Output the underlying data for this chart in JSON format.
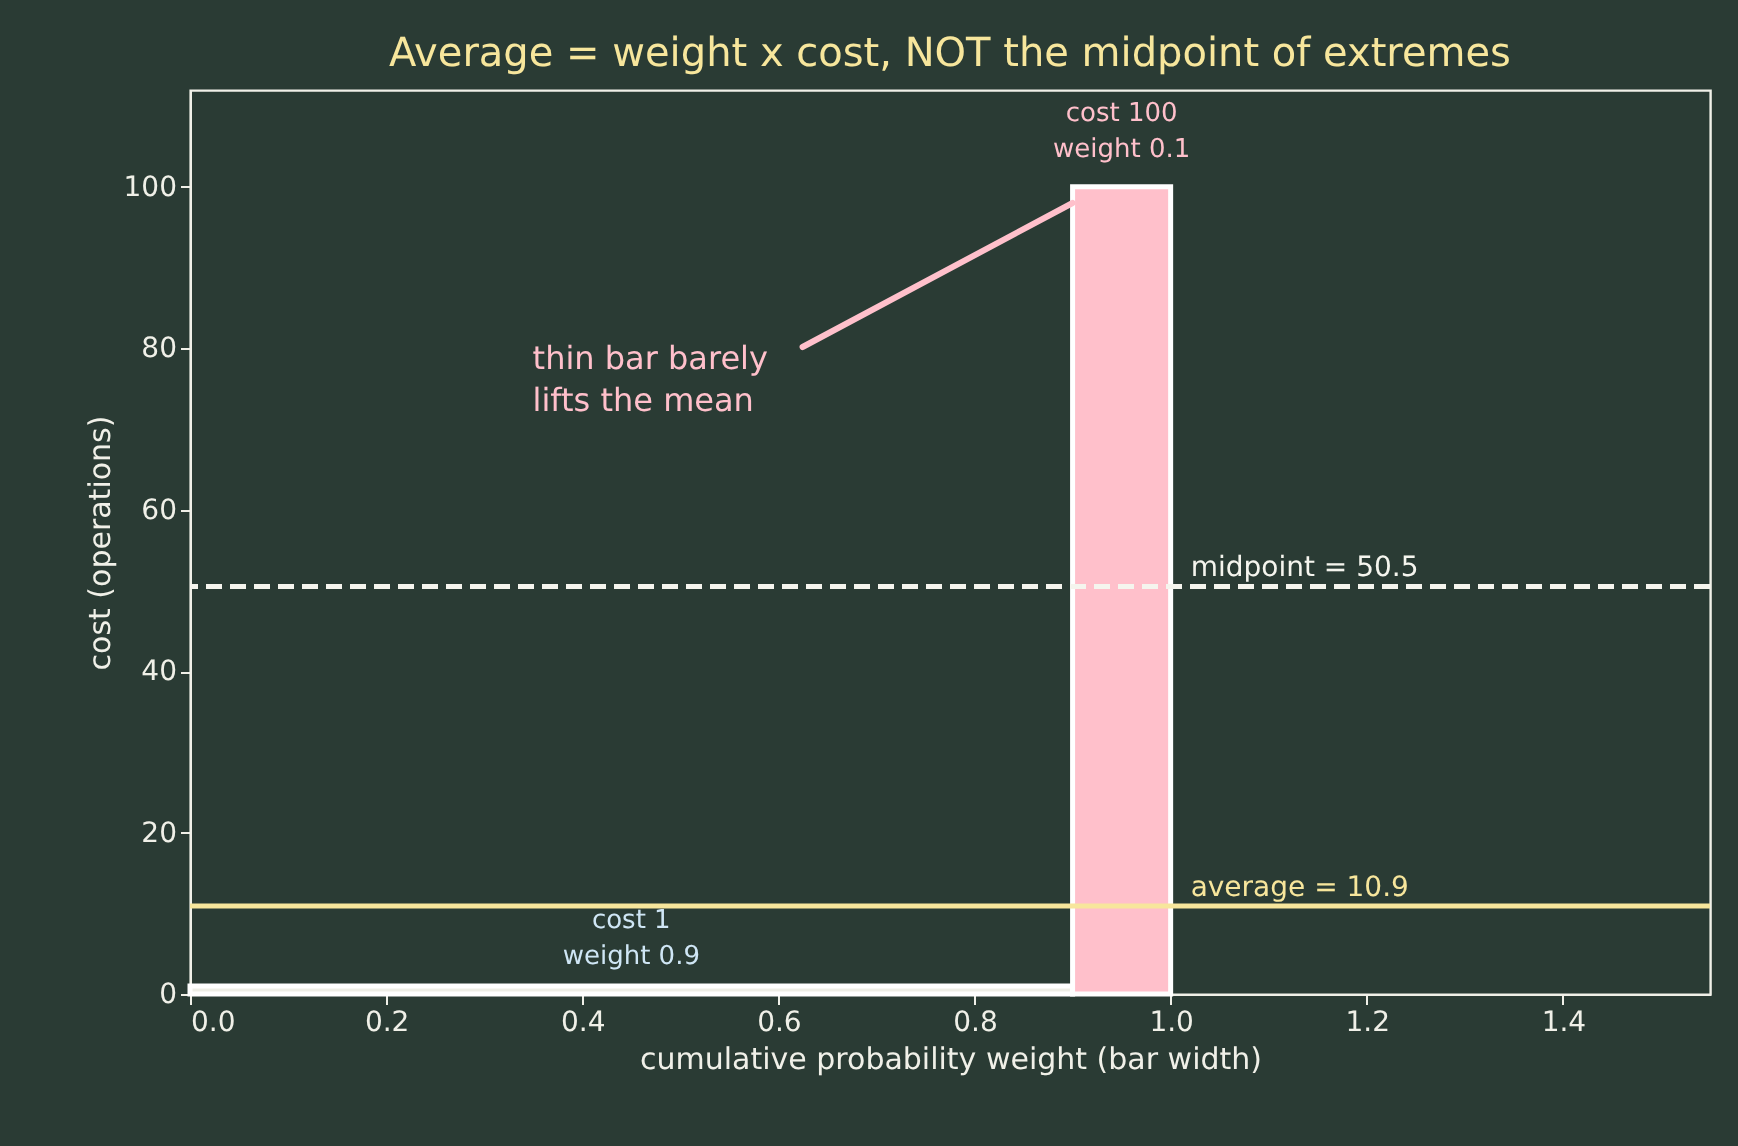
{
  "chart_data": {
    "type": "histogram",
    "title": "Average = weight x cost, NOT the midpoint of extremes",
    "xlabel": "cumulative probability weight (bar width)",
    "ylabel": "cost (operations)",
    "bins": [
      0,
      0.9,
      1.0
    ],
    "values": [
      1,
      100
    ],
    "colors": [
      "#eeeee6",
      "#ffc0cb"
    ],
    "xlim": [
      0,
      1.55
    ],
    "xticks": [
      {
        "value": 0,
        "label": "0.0"
      },
      0.2,
      0.4,
      0.6,
      0.8,
      {
        "value": 1,
        "label": "1.0"
      },
      1.2,
      1.4
    ],
    "ylim": [
      0,
      112
    ],
    "yticks": [
      0,
      20,
      40,
      60,
      80,
      100
    ],
    "ref_lines": [
      {
        "axis": "y",
        "value": 50.5,
        "label": "midpoint = 50.5",
        "color": "#f5f5ee",
        "line_style": "dashed"
      },
      {
        "axis": "y",
        "value": 10.9,
        "label": "average = 10.9",
        "color": "#f7e69c",
        "line_style": "solid"
      }
    ],
    "annotations": [
      {
        "text": "cost 100\nweight 0.1",
        "x": 0.95,
        "y": 100
      },
      {
        "text": "cost 1\nweight 0.9",
        "x": 0.45,
        "y": 1
      },
      {
        "text": "thin bar barely\nlifts the mean",
        "x": 0.9,
        "y": 98
      }
    ],
    "grid": false
  }
}
